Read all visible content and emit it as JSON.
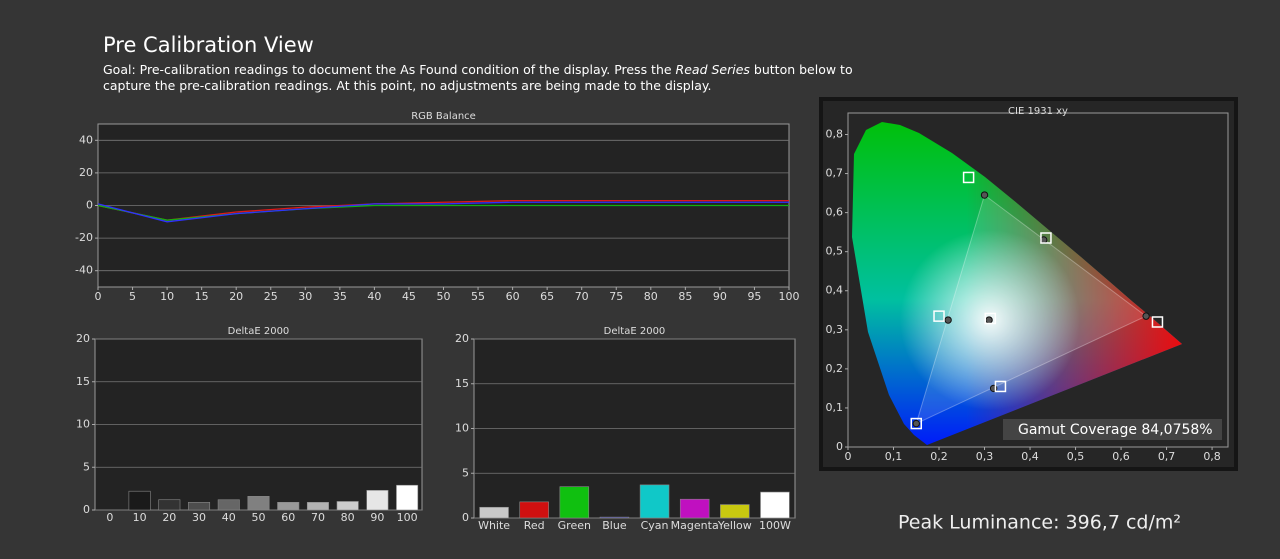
{
  "header": {
    "title": "Pre Calibration View",
    "goal": [
      "Goal: Pre-calibration readings to document the As Found condition of the display. Press the ",
      "Read Series",
      " button below to capture the pre-calibration readings. At this point, no adjustments are being made to the display."
    ]
  },
  "chart_data": [
    {
      "type": "line",
      "title": "RGB Balance",
      "x": [
        0,
        10,
        20,
        30,
        40,
        50,
        60,
        70,
        80,
        90,
        100
      ],
      "series": [
        {
          "color": "#e01818",
          "values": [
            0,
            -9,
            -4,
            -1,
            1,
            2,
            3,
            3,
            3,
            3,
            3
          ]
        },
        {
          "color": "#10b010",
          "values": [
            0,
            -9,
            -5,
            -2,
            0,
            0,
            0,
            0,
            0,
            0,
            0
          ]
        },
        {
          "color": "#3030ff",
          "values": [
            1,
            -10,
            -5,
            -2,
            1,
            1,
            2,
            2,
            2,
            2,
            2
          ]
        }
      ],
      "xlim": [
        0,
        100
      ],
      "xticks": [
        0,
        5,
        10,
        15,
        20,
        25,
        30,
        35,
        40,
        45,
        50,
        55,
        60,
        65,
        70,
        75,
        80,
        85,
        90,
        95,
        100
      ],
      "ylim": [
        -50,
        50
      ],
      "yticks": [
        -40,
        -20,
        0,
        20,
        40
      ],
      "grid": true
    },
    {
      "type": "bar",
      "title": "DeltaE 2000",
      "categories": [
        "0",
        "10",
        "20",
        "30",
        "40",
        "50",
        "60",
        "70",
        "80",
        "90",
        "100"
      ],
      "values": [
        0,
        2.2,
        1.2,
        0.9,
        1.2,
        1.6,
        0.9,
        0.9,
        1.0,
        2.3,
        2.9
      ],
      "colors": [
        "#000000",
        "#1a1a1a",
        "#333333",
        "#4d4d4d",
        "#666666",
        "#808080",
        "#999999",
        "#b3b3b3",
        "#cccccc",
        "#e6e6e6",
        "#ffffff"
      ],
      "ylim": [
        0,
        20
      ],
      "yticks": [
        0,
        5,
        10,
        15,
        20
      ],
      "grid": true
    },
    {
      "type": "bar",
      "title": "DeltaE 2000",
      "categories": [
        "White",
        "Red",
        "Green",
        "Blue",
        "Cyan",
        "Magenta",
        "Yellow",
        "100W"
      ],
      "values": [
        1.2,
        1.8,
        3.5,
        0.1,
        3.7,
        2.1,
        1.5,
        2.9
      ],
      "colors": [
        "#c8c8c8",
        "#d01010",
        "#10c010",
        "#2020d0",
        "#10c8c8",
        "#c010c0",
        "#c8c810",
        "#ffffff"
      ],
      "ylim": [
        0,
        20
      ],
      "yticks": [
        0,
        5,
        10,
        15,
        20
      ],
      "grid": true
    },
    {
      "type": "scatter",
      "title": "CIE 1931 xy",
      "series": [
        {
          "marker": "square",
          "color": "#ffffff",
          "x": [
            0.68,
            0.265,
            0.15,
            0.2,
            0.335,
            0.435,
            0.3127
          ],
          "values": [
            0.32,
            0.69,
            0.06,
            0.335,
            0.155,
            0.535,
            0.329
          ]
        },
        {
          "marker": "circle",
          "color": "#555555",
          "x": [
            0.655,
            0.3,
            0.15,
            0.22,
            0.32,
            0.43,
            0.31
          ],
          "values": [
            0.335,
            0.645,
            0.06,
            0.325,
            0.15,
            0.53,
            0.325
          ]
        }
      ],
      "xlim": [
        0,
        0.835
      ],
      "xticks": [
        0,
        {
          "value": 0.1,
          "label": "0,1"
        },
        {
          "value": 0.2,
          "label": "0,2"
        },
        {
          "value": 0.3,
          "label": "0,3"
        },
        {
          "value": 0.4,
          "label": "0,4"
        },
        {
          "value": 0.5,
          "label": "0,5"
        },
        {
          "value": 0.6,
          "label": "0,6"
        },
        {
          "value": 0.7,
          "label": "0,7"
        },
        {
          "value": 0.8,
          "label": "0,8"
        }
      ],
      "ylim": [
        0,
        0.855
      ],
      "yticks": [
        0,
        {
          "value": 0.1,
          "label": "0,1"
        },
        {
          "value": 0.2,
          "label": "0,2"
        },
        {
          "value": 0.3,
          "label": "0,3"
        },
        {
          "value": 0.4,
          "label": "0,4"
        },
        {
          "value": 0.5,
          "label": "0,5"
        },
        {
          "value": 0.6,
          "label": "0,6"
        },
        {
          "value": 0.7,
          "label": "0,7"
        },
        {
          "value": 0.8,
          "label": "0,8"
        }
      ],
      "annotation": "Gamut Coverage 84,0758%"
    }
  ],
  "peak_luminance": "Peak Luminance: 396,7 cd/m²"
}
